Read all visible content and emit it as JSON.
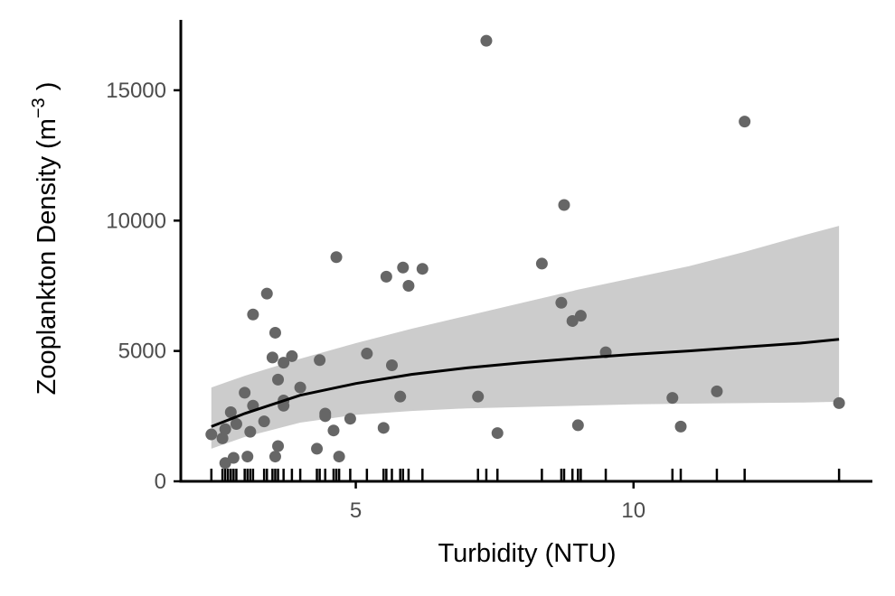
{
  "chart_data": {
    "type": "scatter",
    "title": "",
    "xlabel": "Turbidity (NTU)",
    "ylabel_main": "Zooplankton Density (m",
    "ylabel_sup": "−3",
    "ylabel_close": " )",
    "xlim": [
      1.85,
      14.3
    ],
    "ylim": [
      0,
      17700
    ],
    "x_ticks": [
      5,
      10
    ],
    "x_tick_labels": [
      "5",
      "10"
    ],
    "y_ticks": [
      0,
      5000,
      10000,
      15000
    ],
    "y_tick_labels": [
      "0",
      "5000",
      "10000",
      "15000"
    ],
    "grid": false,
    "legend": "none",
    "colors": {
      "points": "#666666",
      "line": "#000000",
      "ribbon": "#cccccc",
      "axis": "#000000",
      "tick_text": "#4d4d4d"
    },
    "points": [
      {
        "x": 2.4,
        "y": 1800
      },
      {
        "x": 2.6,
        "y": 1650
      },
      {
        "x": 2.65,
        "y": 2000
      },
      {
        "x": 2.65,
        "y": 700
      },
      {
        "x": 2.75,
        "y": 2650
      },
      {
        "x": 2.8,
        "y": 900
      },
      {
        "x": 2.85,
        "y": 2200
      },
      {
        "x": 3.0,
        "y": 3400
      },
      {
        "x": 3.05,
        "y": 950
      },
      {
        "x": 3.1,
        "y": 1900
      },
      {
        "x": 3.15,
        "y": 2900
      },
      {
        "x": 3.15,
        "y": 6400
      },
      {
        "x": 3.35,
        "y": 2300
      },
      {
        "x": 3.4,
        "y": 7200
      },
      {
        "x": 3.5,
        "y": 4750
      },
      {
        "x": 3.55,
        "y": 5700
      },
      {
        "x": 3.6,
        "y": 3900
      },
      {
        "x": 3.6,
        "y": 1350
      },
      {
        "x": 3.55,
        "y": 950
      },
      {
        "x": 3.7,
        "y": 4550
      },
      {
        "x": 3.7,
        "y": 3100
      },
      {
        "x": 3.7,
        "y": 2900
      },
      {
        "x": 3.85,
        "y": 4800
      },
      {
        "x": 4.0,
        "y": 3600
      },
      {
        "x": 4.3,
        "y": 1250
      },
      {
        "x": 4.35,
        "y": 4650
      },
      {
        "x": 4.45,
        "y": 2600
      },
      {
        "x": 4.45,
        "y": 2500
      },
      {
        "x": 4.6,
        "y": 1950
      },
      {
        "x": 4.65,
        "y": 8600
      },
      {
        "x": 4.7,
        "y": 950
      },
      {
        "x": 4.9,
        "y": 2400
      },
      {
        "x": 5.2,
        "y": 4900
      },
      {
        "x": 5.5,
        "y": 2050
      },
      {
        "x": 5.55,
        "y": 7850
      },
      {
        "x": 5.65,
        "y": 4450
      },
      {
        "x": 5.8,
        "y": 3250
      },
      {
        "x": 5.85,
        "y": 8200
      },
      {
        "x": 5.95,
        "y": 7500
      },
      {
        "x": 6.2,
        "y": 8150
      },
      {
        "x": 7.2,
        "y": 3250
      },
      {
        "x": 7.35,
        "y": 16900
      },
      {
        "x": 7.55,
        "y": 1850
      },
      {
        "x": 8.35,
        "y": 8350
      },
      {
        "x": 8.7,
        "y": 6850
      },
      {
        "x": 8.75,
        "y": 10600
      },
      {
        "x": 8.9,
        "y": 6150
      },
      {
        "x": 9.0,
        "y": 2150
      },
      {
        "x": 9.05,
        "y": 6350
      },
      {
        "x": 9.5,
        "y": 4950
      },
      {
        "x": 10.7,
        "y": 3200
      },
      {
        "x": 10.85,
        "y": 2100
      },
      {
        "x": 11.5,
        "y": 3450
      },
      {
        "x": 12.0,
        "y": 13800
      },
      {
        "x": 13.7,
        "y": 3000
      }
    ],
    "rug_x": [
      2.4,
      2.6,
      2.65,
      2.7,
      2.75,
      2.8,
      2.85,
      3.0,
      3.05,
      3.1,
      3.15,
      3.35,
      3.4,
      3.5,
      3.55,
      3.6,
      3.7,
      3.85,
      4.0,
      4.3,
      4.35,
      4.45,
      4.6,
      4.65,
      4.7,
      4.9,
      5.2,
      5.5,
      5.55,
      5.65,
      5.8,
      5.85,
      5.95,
      6.2,
      7.2,
      7.35,
      7.55,
      8.35,
      8.7,
      8.75,
      8.9,
      9.0,
      9.05,
      9.5,
      10.7,
      10.85,
      11.5,
      12.0,
      13.7
    ],
    "fit_curve": [
      {
        "x": 2.4,
        "y": 2100
      },
      {
        "x": 3.0,
        "y": 2600
      },
      {
        "x": 4.0,
        "y": 3300
      },
      {
        "x": 5.0,
        "y": 3750
      },
      {
        "x": 6.0,
        "y": 4100
      },
      {
        "x": 7.0,
        "y": 4350
      },
      {
        "x": 8.0,
        "y": 4550
      },
      {
        "x": 9.0,
        "y": 4720
      },
      {
        "x": 10.0,
        "y": 4870
      },
      {
        "x": 11.0,
        "y": 5000
      },
      {
        "x": 12.0,
        "y": 5150
      },
      {
        "x": 13.0,
        "y": 5300
      },
      {
        "x": 13.7,
        "y": 5450
      }
    ],
    "ribbon_upper": [
      {
        "x": 2.4,
        "y": 3600
      },
      {
        "x": 3.0,
        "y": 4050
      },
      {
        "x": 4.0,
        "y": 4700
      },
      {
        "x": 5.0,
        "y": 5300
      },
      {
        "x": 6.0,
        "y": 5850
      },
      {
        "x": 7.0,
        "y": 6350
      },
      {
        "x": 8.0,
        "y": 6850
      },
      {
        "x": 9.0,
        "y": 7350
      },
      {
        "x": 10.0,
        "y": 7800
      },
      {
        "x": 11.0,
        "y": 8250
      },
      {
        "x": 12.0,
        "y": 8800
      },
      {
        "x": 13.0,
        "y": 9400
      },
      {
        "x": 13.7,
        "y": 9800
      }
    ],
    "ribbon_lower": [
      {
        "x": 2.4,
        "y": 1250
      },
      {
        "x": 3.0,
        "y": 1700
      },
      {
        "x": 4.0,
        "y": 2250
      },
      {
        "x": 5.0,
        "y": 2550
      },
      {
        "x": 6.0,
        "y": 2700
      },
      {
        "x": 7.0,
        "y": 2800
      },
      {
        "x": 8.0,
        "y": 2850
      },
      {
        "x": 9.0,
        "y": 2900
      },
      {
        "x": 10.0,
        "y": 2950
      },
      {
        "x": 11.0,
        "y": 2980
      },
      {
        "x": 12.0,
        "y": 3000
      },
      {
        "x": 13.0,
        "y": 3020
      },
      {
        "x": 13.7,
        "y": 3050
      }
    ]
  }
}
